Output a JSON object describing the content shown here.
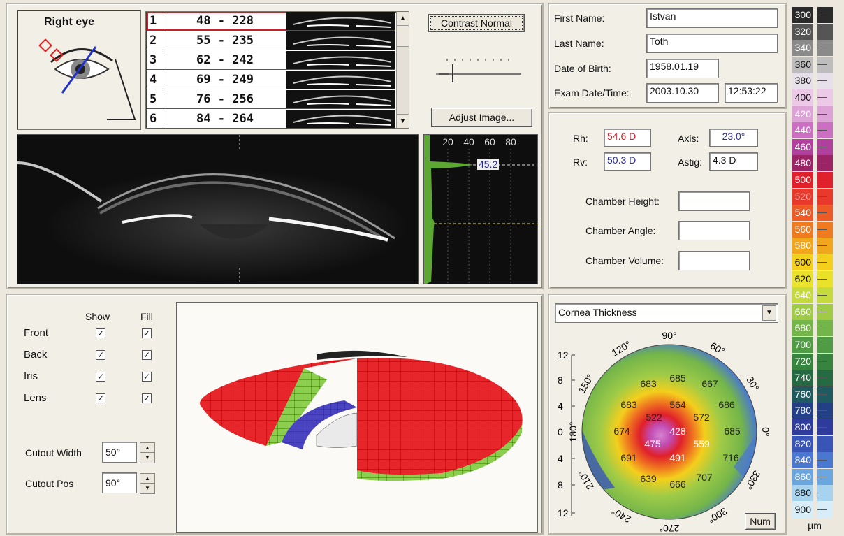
{
  "eye": {
    "title": "Right eye"
  },
  "scans": [
    {
      "num": "1",
      "range": "48 - 228"
    },
    {
      "num": "2",
      "range": "55 - 235"
    },
    {
      "num": "3",
      "range": "62 - 242"
    },
    {
      "num": "4",
      "range": "69 - 249"
    },
    {
      "num": "5",
      "range": "76 - 256"
    },
    {
      "num": "6",
      "range": "84 - 264"
    }
  ],
  "image_controls": {
    "contrast_label": "Contrast Normal",
    "adjust_label": "Adjust Image..."
  },
  "profile": {
    "ticks": [
      "20",
      "40",
      "60",
      "80"
    ],
    "value": "45.2"
  },
  "patient": {
    "first_name_label": "First Name:",
    "first_name": "Istvan",
    "last_name_label": "Last Name:",
    "last_name": "Toth",
    "dob_label": "Date of Birth:",
    "dob": "1958.01.19",
    "exam_label": "Exam Date/Time:",
    "exam_date": "2003.10.30",
    "exam_time": "12:53:22"
  },
  "measurements": {
    "rh_label": "Rh:",
    "rh": "54.6 D",
    "rv_label": "Rv:",
    "rv": "50.3 D",
    "axis_label": "Axis:",
    "axis": "23.0°",
    "astig_label": "Astig:",
    "astig": "4.3 D",
    "chamber_height_label": "Chamber Height:",
    "chamber_angle_label": "Chamber Angle:",
    "chamber_volume_label": "Chamber Volume:"
  },
  "display_options": {
    "show_header": "Show",
    "fill_header": "Fill",
    "rows": [
      {
        "label": "Front",
        "show": "✓",
        "fill": "✓"
      },
      {
        "label": "Back",
        "show": "✓",
        "fill": "✓"
      },
      {
        "label": "Iris",
        "show": "✓",
        "fill": "✓"
      },
      {
        "label": "Lens",
        "show": "✓",
        "fill": "✓"
      }
    ],
    "cutout_width_label": "Cutout Width",
    "cutout_width": "50°",
    "cutout_pos_label": "Cutout Pos",
    "cutout_pos": "90°"
  },
  "map": {
    "dropdown": "Cornea Thickness",
    "y_ticks": [
      "12",
      "8",
      "4",
      "0",
      "4",
      "8",
      "12"
    ],
    "angles": [
      "90°",
      "60°",
      "30°",
      "0°",
      "330°",
      "300°",
      "270°",
      "240°",
      "210°",
      "180°",
      "150°",
      "120°"
    ],
    "values": [
      "685",
      "683",
      "667",
      "683",
      "564",
      "686",
      "522",
      "572",
      "674",
      "428",
      "685",
      "475",
      "559",
      "691",
      "491",
      "716",
      "639",
      "666",
      "707"
    ],
    "num_button": "Num"
  },
  "color_scale": {
    "unit": "µm",
    "entries": [
      {
        "v": "300",
        "c": "#2b2b2b",
        "t": "#fff"
      },
      {
        "v": "320",
        "c": "#555555",
        "t": "#fff"
      },
      {
        "v": "340",
        "c": "#8a8a8a",
        "t": "#fff"
      },
      {
        "v": "360",
        "c": "#bdbdbd",
        "t": "#111"
      },
      {
        "v": "380",
        "c": "#e6e0ea",
        "t": "#111"
      },
      {
        "v": "400",
        "c": "#ecc9e7",
        "t": "#111"
      },
      {
        "v": "420",
        "c": "#dea3d6",
        "t": "#fff"
      },
      {
        "v": "440",
        "c": "#cc6fc3",
        "t": "#fff"
      },
      {
        "v": "460",
        "c": "#b03f9e",
        "t": "#fff"
      },
      {
        "v": "480",
        "c": "#9b2466",
        "t": "#fff"
      },
      {
        "v": "500",
        "c": "#e0202a",
        "t": "#fff"
      },
      {
        "v": "520",
        "c": "#e8392a",
        "t": "#f0a0a0"
      },
      {
        "v": "540",
        "c": "#ee5a25",
        "t": "#fff"
      },
      {
        "v": "560",
        "c": "#f07a20",
        "t": "#fff"
      },
      {
        "v": "580",
        "c": "#f2a61c",
        "t": "#fff"
      },
      {
        "v": "600",
        "c": "#f4cf1c",
        "t": "#111"
      },
      {
        "v": "620",
        "c": "#eae22a",
        "t": "#111"
      },
      {
        "v": "640",
        "c": "#c5da3c",
        "t": "#fff"
      },
      {
        "v": "660",
        "c": "#9fcb47",
        "t": "#fff"
      },
      {
        "v": "680",
        "c": "#74b54a",
        "t": "#fff"
      },
      {
        "v": "700",
        "c": "#4f9c44",
        "t": "#fff"
      },
      {
        "v": "720",
        "c": "#36843e",
        "t": "#fff"
      },
      {
        "v": "740",
        "c": "#266a44",
        "t": "#fff"
      },
      {
        "v": "760",
        "c": "#1f5a60",
        "t": "#fff"
      },
      {
        "v": "780",
        "c": "#233f86",
        "t": "#fff"
      },
      {
        "v": "800",
        "c": "#2e3b9c",
        "t": "#fff"
      },
      {
        "v": "820",
        "c": "#3a55b8",
        "t": "#fff"
      },
      {
        "v": "840",
        "c": "#4a78d0",
        "t": "#fff"
      },
      {
        "v": "860",
        "c": "#6aa6e0",
        "t": "#fff"
      },
      {
        "v": "880",
        "c": "#a8d3ef",
        "t": "#111"
      },
      {
        "v": "900",
        "c": "#d7edf8",
        "t": "#111"
      }
    ]
  }
}
